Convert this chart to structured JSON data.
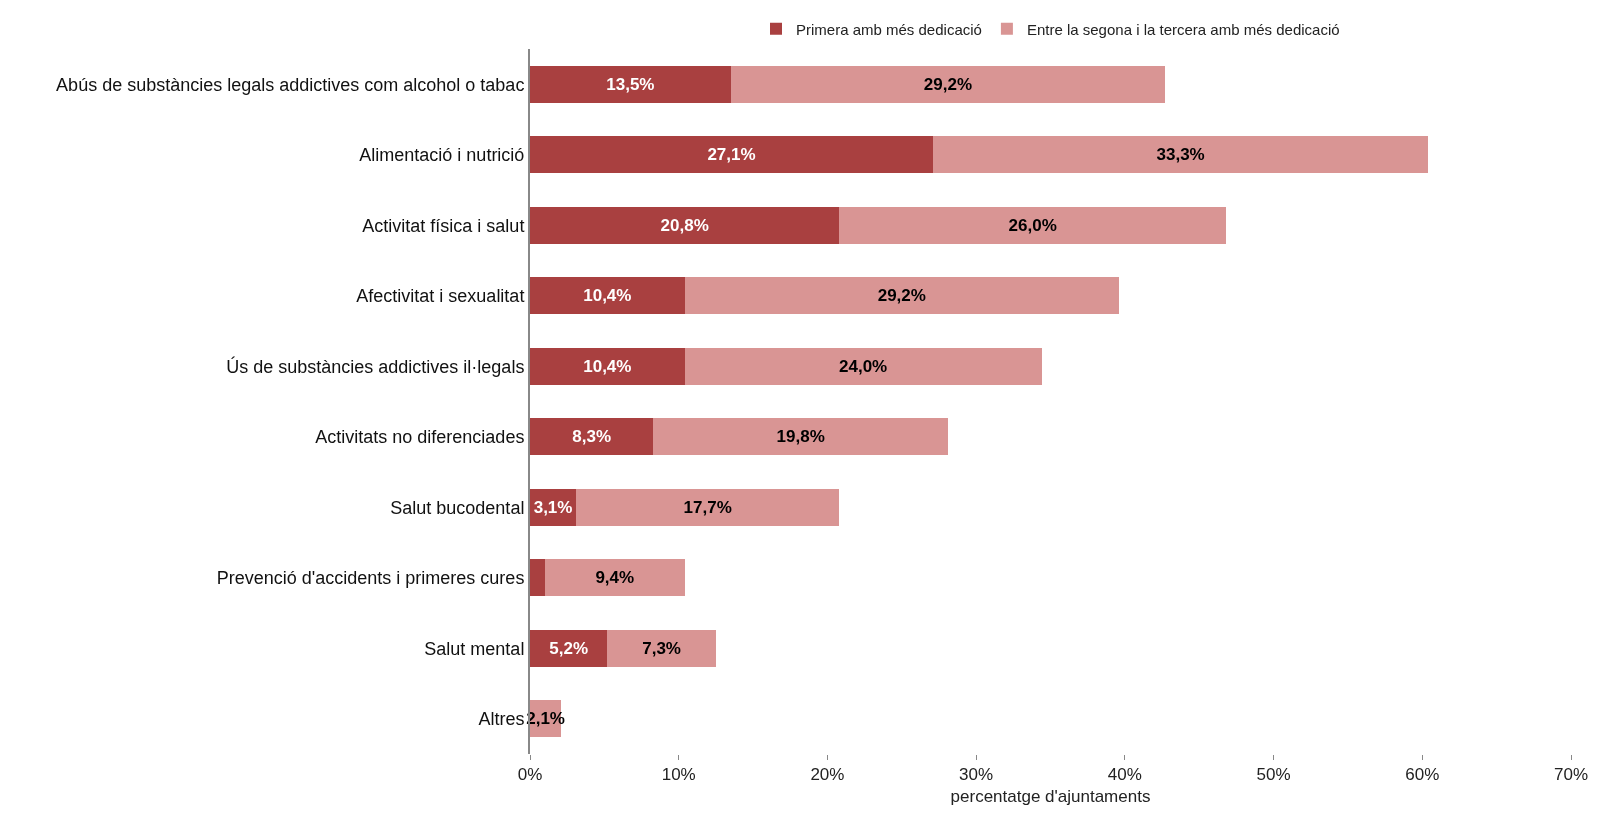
{
  "chart_data": {
    "type": "bar",
    "orientation": "horizontal",
    "stacked": true,
    "xlabel": "percentatge d'ajuntaments",
    "categories": [
      "Abús de substàncies legals addictives com alcohol o tabac",
      "Alimentació i nutrició",
      "Activitat física i salut",
      "Afectivitat i sexualitat",
      "Ús de substàncies addictives il·legals",
      "Activitats no diferenciades",
      "Salut bucodental",
      "Prevenció d'accidents i primeres cures",
      "Salut mental",
      "Altres"
    ],
    "series": [
      {
        "name": "Primera amb més dedicació",
        "color": "#a94040",
        "values": [
          13.5,
          27.1,
          20.8,
          10.4,
          10.4,
          8.3,
          3.1,
          1.0,
          5.2,
          0
        ],
        "value_labels": [
          "13,5%",
          "27,1%",
          "20,8%",
          "10,4%",
          "10,4%",
          "8,3%",
          "3,1%",
          null,
          "5,2%",
          null
        ]
      },
      {
        "name": "Entre la segona i la tercera amb més dedicació",
        "color": "#d99594",
        "values": [
          29.2,
          33.3,
          26.0,
          29.2,
          24.0,
          19.8,
          17.7,
          9.4,
          7.3,
          2.1
        ],
        "value_labels": [
          "29,2%",
          "33,3%",
          "26,0%",
          "29,2%",
          "24,0%",
          "19,8%",
          "17,7%",
          "9,4%",
          "7,3%",
          "2,1%"
        ]
      }
    ],
    "xlim": [
      0,
      70
    ],
    "xticks": [
      {
        "value": 0,
        "label": "0%"
      },
      {
        "value": 10,
        "label": "10%"
      },
      {
        "value": 20,
        "label": "20%"
      },
      {
        "value": 30,
        "label": "30%"
      },
      {
        "value": 40,
        "label": "40%"
      },
      {
        "value": 50,
        "label": "50%"
      },
      {
        "value": 60,
        "label": "60%"
      },
      {
        "value": 70,
        "label": "70%"
      }
    ],
    "grid": false,
    "legend": "top"
  }
}
